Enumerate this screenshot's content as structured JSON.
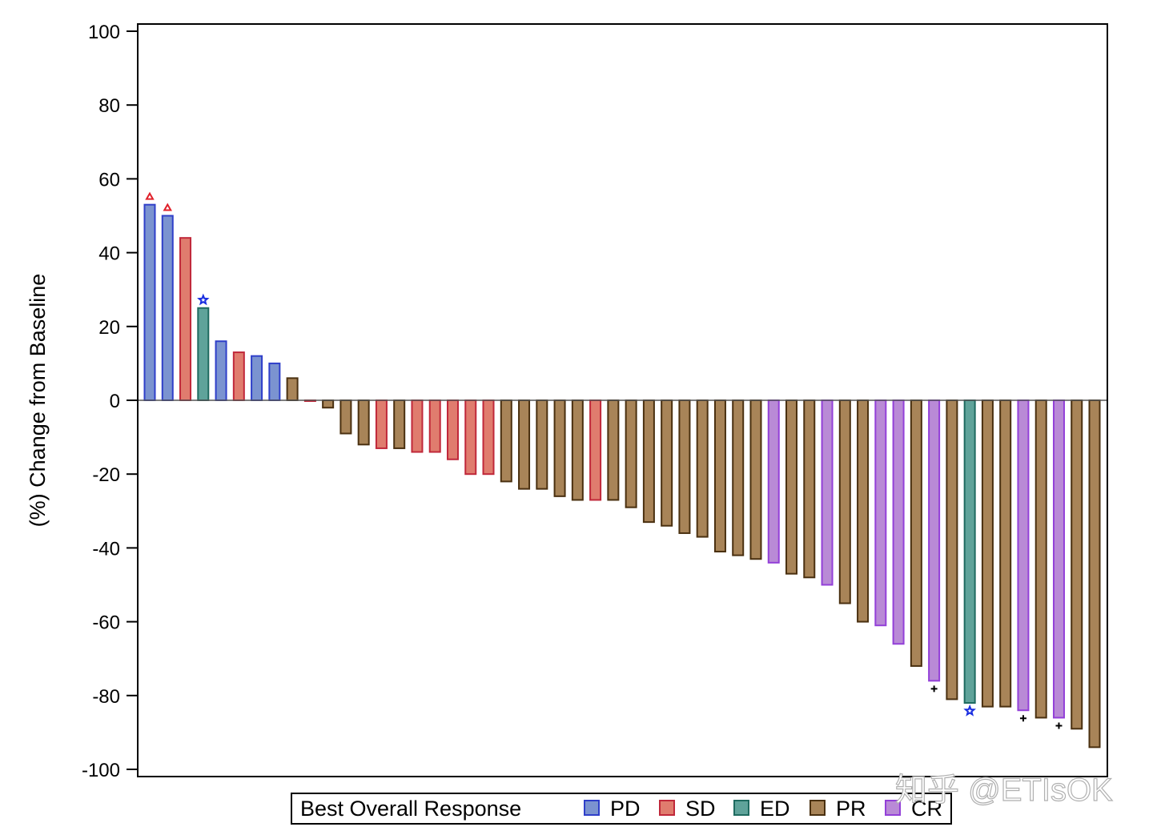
{
  "chart_data": {
    "type": "bar",
    "subtype": "waterfall",
    "title": "",
    "xlabel": "",
    "ylabel": "(%) Change from Baseline",
    "ylim": [
      -100,
      100
    ],
    "yticks": [
      100,
      80,
      60,
      40,
      20,
      0,
      -20,
      -40,
      -60,
      -80,
      -100
    ],
    "grid": false,
    "legend": {
      "title": "Best Overall Response",
      "position": "bottom",
      "entries": [
        {
          "key": "PD",
          "label": "PD",
          "fill": "#7b93d0",
          "stroke": "#2f3fc9"
        },
        {
          "key": "SD",
          "label": "SD",
          "fill": "#e07c6e",
          "stroke": "#c0283a"
        },
        {
          "key": "ED",
          "label": "ED",
          "fill": "#5fa39a",
          "stroke": "#1f6b60"
        },
        {
          "key": "PR",
          "label": "PR",
          "fill": "#a88458",
          "stroke": "#4a3010"
        },
        {
          "key": "CR",
          "label": "CR",
          "fill": "#b98ad6",
          "stroke": "#9340d8"
        }
      ]
    },
    "markers_legend": {
      "triangle": "red triangle above bar",
      "star": "blue star at bar end",
      "plus": "black plus below bar"
    },
    "bars": [
      {
        "value": 53,
        "response": "PD",
        "marker": "triangle"
      },
      {
        "value": 50,
        "response": "PD",
        "marker": "triangle"
      },
      {
        "value": 44,
        "response": "SD",
        "marker": null
      },
      {
        "value": 25,
        "response": "ED",
        "marker": "star"
      },
      {
        "value": 16,
        "response": "PD",
        "marker": null
      },
      {
        "value": 13,
        "response": "SD",
        "marker": null
      },
      {
        "value": 12,
        "response": "PD",
        "marker": null
      },
      {
        "value": 10,
        "response": "PD",
        "marker": null
      },
      {
        "value": 6,
        "response": "PR",
        "marker": null
      },
      {
        "value": 0,
        "response": "SD",
        "marker": null
      },
      {
        "value": -2,
        "response": "PR",
        "marker": null
      },
      {
        "value": -9,
        "response": "PR",
        "marker": null
      },
      {
        "value": -12,
        "response": "PR",
        "marker": null
      },
      {
        "value": -13,
        "response": "SD",
        "marker": null
      },
      {
        "value": -13,
        "response": "PR",
        "marker": null
      },
      {
        "value": -14,
        "response": "SD",
        "marker": null
      },
      {
        "value": -14,
        "response": "SD",
        "marker": null
      },
      {
        "value": -16,
        "response": "SD",
        "marker": null
      },
      {
        "value": -20,
        "response": "SD",
        "marker": null
      },
      {
        "value": -20,
        "response": "SD",
        "marker": null
      },
      {
        "value": -22,
        "response": "PR",
        "marker": null
      },
      {
        "value": -24,
        "response": "PR",
        "marker": null
      },
      {
        "value": -24,
        "response": "PR",
        "marker": null
      },
      {
        "value": -26,
        "response": "PR",
        "marker": null
      },
      {
        "value": -27,
        "response": "PR",
        "marker": null
      },
      {
        "value": -27,
        "response": "SD",
        "marker": null
      },
      {
        "value": -27,
        "response": "PR",
        "marker": null
      },
      {
        "value": -29,
        "response": "PR",
        "marker": null
      },
      {
        "value": -33,
        "response": "PR",
        "marker": null
      },
      {
        "value": -34,
        "response": "PR",
        "marker": null
      },
      {
        "value": -36,
        "response": "PR",
        "marker": null
      },
      {
        "value": -37,
        "response": "PR",
        "marker": null
      },
      {
        "value": -41,
        "response": "PR",
        "marker": null
      },
      {
        "value": -42,
        "response": "PR",
        "marker": null
      },
      {
        "value": -43,
        "response": "PR",
        "marker": null
      },
      {
        "value": -44,
        "response": "CR",
        "marker": null
      },
      {
        "value": -47,
        "response": "PR",
        "marker": null
      },
      {
        "value": -48,
        "response": "PR",
        "marker": null
      },
      {
        "value": -50,
        "response": "CR",
        "marker": null
      },
      {
        "value": -55,
        "response": "PR",
        "marker": null
      },
      {
        "value": -60,
        "response": "PR",
        "marker": null
      },
      {
        "value": -61,
        "response": "CR",
        "marker": null
      },
      {
        "value": -66,
        "response": "CR",
        "marker": null
      },
      {
        "value": -72,
        "response": "PR",
        "marker": null
      },
      {
        "value": -76,
        "response": "CR",
        "marker": "plus"
      },
      {
        "value": -81,
        "response": "PR",
        "marker": null
      },
      {
        "value": -82,
        "response": "ED",
        "marker": "star"
      },
      {
        "value": -83,
        "response": "PR",
        "marker": null
      },
      {
        "value": -83,
        "response": "PR",
        "marker": null
      },
      {
        "value": -84,
        "response": "CR",
        "marker": "plus"
      },
      {
        "value": -86,
        "response": "PR",
        "marker": null
      },
      {
        "value": -86,
        "response": "CR",
        "marker": "plus"
      },
      {
        "value": -89,
        "response": "PR",
        "marker": null
      },
      {
        "value": -94,
        "response": "PR",
        "marker": null
      }
    ]
  },
  "watermark": "知乎 @ETIsOK"
}
